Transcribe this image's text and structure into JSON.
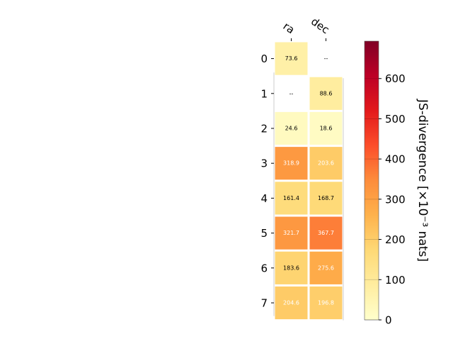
{
  "chart_data": {
    "type": "heatmap",
    "columns": [
      "ra",
      "dec"
    ],
    "rows": [
      "0",
      "1",
      "2",
      "3",
      "4",
      "5",
      "6",
      "7"
    ],
    "values": [
      [
        73.6,
        null
      ],
      [
        null,
        88.6
      ],
      [
        24.6,
        18.6
      ],
      [
        318.9,
        203.6
      ],
      [
        161.4,
        168.7
      ],
      [
        321.7,
        367.7
      ],
      [
        183.6,
        275.6
      ],
      [
        204.6,
        196.8
      ]
    ],
    "cell_labels": [
      [
        "73.6",
        "--"
      ],
      [
        "--",
        "88.6"
      ],
      [
        "24.6",
        "18.6"
      ],
      [
        "318.9",
        "203.6"
      ],
      [
        "161.4",
        "168.7"
      ],
      [
        "321.7",
        "367.7"
      ],
      [
        "183.6",
        "275.6"
      ],
      [
        "204.6",
        "196.8"
      ]
    ],
    "colormap": "YlOrRd",
    "colorbar": {
      "label": "JS-divergence [×10⁻³ nats]",
      "range": [
        0,
        693
      ],
      "ticks": [
        0,
        100,
        200,
        300,
        400,
        500,
        600
      ]
    }
  }
}
